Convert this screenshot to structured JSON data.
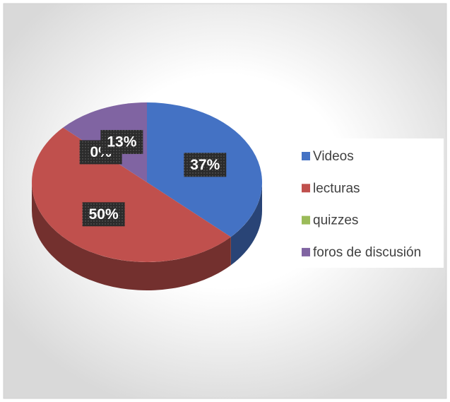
{
  "chart_data": {
    "type": "pie",
    "categories": [
      "Videos",
      "lecturas",
      "quizzes",
      "foros de discusión"
    ],
    "values": [
      37,
      50,
      0,
      13
    ],
    "value_labels": [
      "37%",
      "50%",
      "0%",
      "13%"
    ],
    "colors": [
      "#4472c4",
      "#c0504d",
      "#9bbb59",
      "#8064a2"
    ],
    "legend": "right"
  }
}
